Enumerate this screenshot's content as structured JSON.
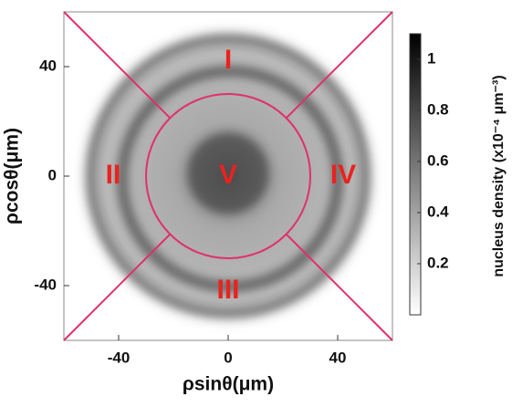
{
  "chart_data": {
    "type": "heatmap",
    "xlabel": "ρsinθ(μm)",
    "ylabel": "ρcosθ(μm)",
    "xlim": [
      -60,
      60
    ],
    "ylim": [
      -60,
      60
    ],
    "xticks": [
      -40,
      0,
      40
    ],
    "yticks": [
      -40,
      0,
      40
    ],
    "colorbar": {
      "label": "nucleus density (x10⁻⁴ μm⁻³)",
      "lim": [
        0,
        1.1
      ],
      "ticks": [
        0.2,
        0.4,
        0.6,
        0.8,
        1.0
      ],
      "colors": [
        "#ffffff",
        "#000000"
      ]
    },
    "region_color": "#e0306a",
    "boundary_radius": 30,
    "annotations": [
      {
        "text": "I",
        "x": 0,
        "y": 42
      },
      {
        "text": "II",
        "x": -42,
        "y": 0
      },
      {
        "text": "III",
        "x": 0,
        "y": -42
      },
      {
        "text": "IV",
        "x": 42,
        "y": 0
      },
      {
        "text": "V",
        "x": 0,
        "y": 0
      }
    ],
    "annotation_color": "#e8231f"
  }
}
